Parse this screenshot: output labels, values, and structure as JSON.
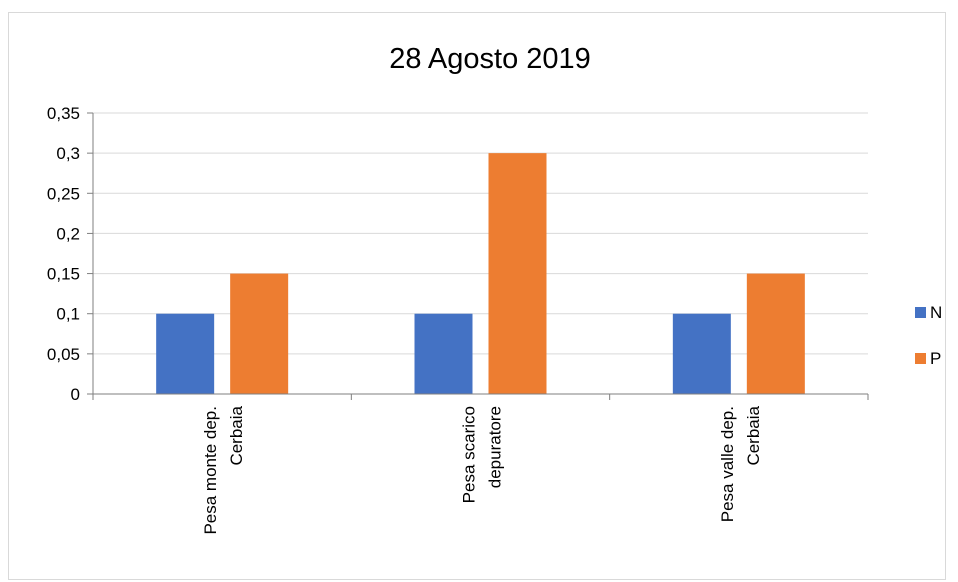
{
  "chart_data": {
    "type": "bar",
    "title": "28 Agosto 2019",
    "xlabel": "",
    "ylabel": "",
    "categories": [
      [
        "Pesa monte dep.",
        "Cerbaia"
      ],
      [
        "Pesa scarico",
        "depuratore"
      ],
      [
        "Pesa valle dep.",
        "Cerbaia"
      ]
    ],
    "series": [
      {
        "name": "N",
        "color": "#4472c4",
        "values": [
          0.1,
          0.1,
          0.1
        ]
      },
      {
        "name": "P",
        "color": "#ed7d31",
        "values": [
          0.15,
          0.3,
          0.15
        ]
      }
    ],
    "ylim": [
      0,
      0.35
    ],
    "yticks": [
      0,
      0.05,
      0.1,
      0.15,
      0.2,
      0.25,
      0.3,
      0.35
    ],
    "ytick_labels": [
      "0",
      "0,05",
      "0,1",
      "0,15",
      "0,2",
      "0,25",
      "0,3",
      "0,35"
    ],
    "grid": true,
    "legend_position": "right"
  }
}
